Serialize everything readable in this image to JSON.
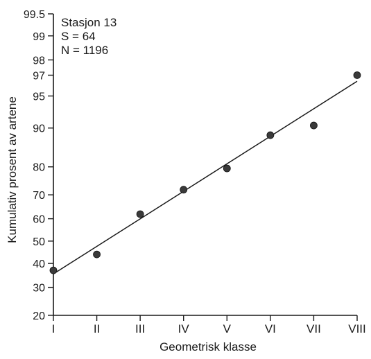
{
  "chart_data": {
    "type": "scatter",
    "title": "",
    "xlabel": "Geometrisk klasse",
    "ylabel": "Kumulativ prosent av artene",
    "y_scale": "probability",
    "x": [
      "I",
      "II",
      "III",
      "IV",
      "V",
      "VI",
      "VII",
      "VIII"
    ],
    "y": [
      37,
      44,
      62,
      72,
      79.5,
      88.5,
      90.5,
      97
    ],
    "fit_line": {
      "from": [
        "I",
        35.5
      ],
      "to": [
        "VIII",
        96.5
      ]
    },
    "y_ticks": [
      20,
      30,
      40,
      50,
      60,
      70,
      80,
      90,
      95,
      97,
      98,
      99,
      99.5
    ],
    "ylim": [
      20,
      99.5
    ],
    "grid": false,
    "annotations": [
      "Stasjon 13",
      "S = 64",
      "N = 1196"
    ]
  }
}
